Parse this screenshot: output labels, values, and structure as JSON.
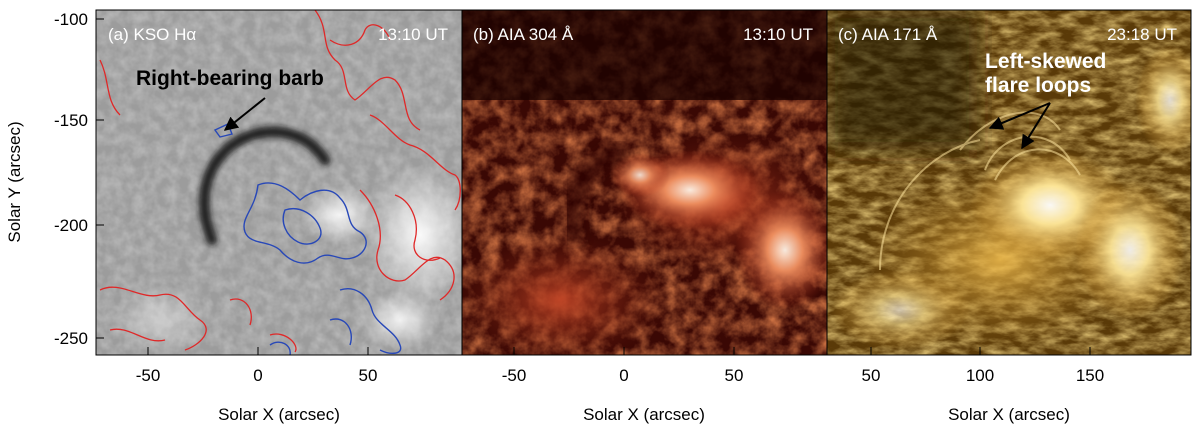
{
  "ylabel": "Solar Y (arcsec)",
  "y_ticks": [
    "-100",
    "-150",
    "-200",
    "-250"
  ],
  "panels": [
    {
      "label": "(a) KSO Hα",
      "time": "13:10 UT",
      "xlabel": "Solar X (arcsec)",
      "x_ticks": [
        "-50",
        "0",
        "50"
      ],
      "annotation": "Right-bearing barb",
      "contour_colors": [
        "#e02828",
        "#2848b8"
      ]
    },
    {
      "label": "(b) AIA 304 Å",
      "time": "13:10 UT",
      "xlabel": "Solar X (arcsec)",
      "x_ticks": [
        "-50",
        "0",
        "50"
      ]
    },
    {
      "label": "(c) AIA 171 Å",
      "time": "23:18 UT",
      "xlabel": "Solar X (arcsec)",
      "x_ticks": [
        "50",
        "100",
        "150"
      ],
      "annotation_line1": "Left-skewed",
      "annotation_line2": "flare loops"
    }
  ]
}
